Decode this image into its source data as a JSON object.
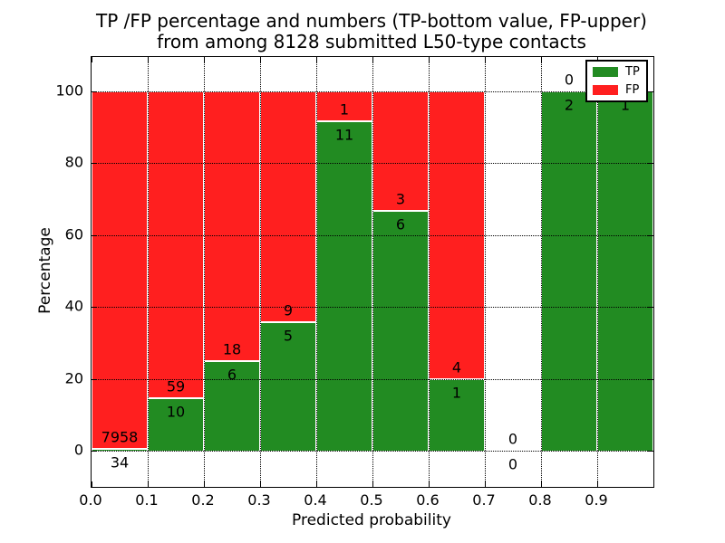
{
  "figure": {
    "title_line1": "TP /FP percentage and numbers (TP-bottom value, FP-upper)",
    "title_line2": "from among 8128 submitted L50-type contacts",
    "xlabel": "Predicted probability",
    "ylabel": "Percentage"
  },
  "legend": {
    "items": [
      {
        "label": "TP",
        "color": "#228b22"
      },
      {
        "label": "FP",
        "color": "#ff1f1f"
      }
    ]
  },
  "chart_data": {
    "type": "bar",
    "stacked": true,
    "normalized": "each non-empty bin stacked to 100%",
    "title": "TP /FP percentage and numbers (TP-bottom value, FP-upper) from among 8128 submitted L50-type contacts",
    "xlabel": "Predicted probability",
    "ylabel": "Percentage",
    "xlim": [
      0.0,
      1.0
    ],
    "ylim": [
      -10,
      110
    ],
    "grid": true,
    "legend_position": "upper right",
    "bin_edges": [
      0.0,
      0.1,
      0.2,
      0.3,
      0.4,
      0.5,
      0.6,
      0.7,
      0.8,
      0.9,
      1.0
    ],
    "xtick_labels": [
      "0.0",
      "0.1",
      "0.2",
      "0.3",
      "0.4",
      "0.5",
      "0.6",
      "0.7",
      "0.8",
      "0.9"
    ],
    "ytick_values": [
      0,
      20,
      40,
      60,
      80,
      100
    ],
    "series": [
      {
        "name": "TP",
        "color": "#228b22",
        "counts": [
          34,
          10,
          6,
          5,
          11,
          6,
          1,
          0,
          2,
          1
        ]
      },
      {
        "name": "FP",
        "color": "#ff1f1f",
        "counts": [
          7958,
          59,
          18,
          9,
          1,
          3,
          4,
          0,
          0,
          0
        ]
      }
    ],
    "tp_percent_of_bin": [
      0.43,
      14.49,
      25.0,
      35.71,
      91.67,
      66.67,
      20.0,
      0.0,
      100.0,
      100.0
    ]
  }
}
